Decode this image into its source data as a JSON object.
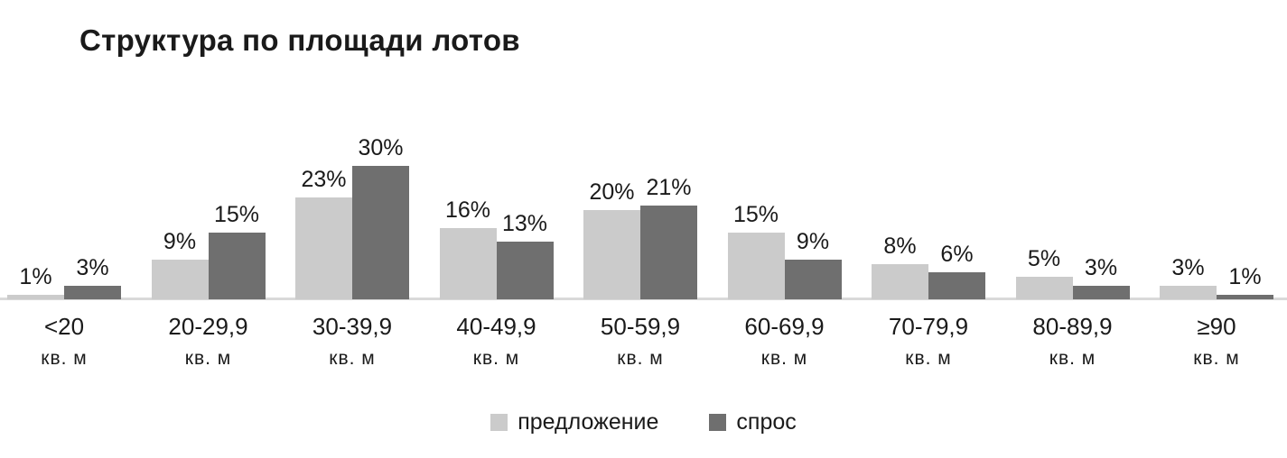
{
  "chart_data": {
    "type": "bar",
    "title": "Структура по площади лотов",
    "categories": [
      "<20",
      "20-29,9",
      "30-39,9",
      "40-49,9",
      "50-59,9",
      "60-69,9",
      "70-79,9",
      "80-89,9",
      "≥90"
    ],
    "category_sublabel": "кв. м",
    "series": [
      {
        "key": "supply",
        "name": "предложение",
        "color": "#cbcbcb",
        "values": [
          1,
          9,
          23,
          16,
          20,
          15,
          8,
          5,
          3
        ]
      },
      {
        "key": "demand",
        "name": "спрос",
        "color": "#6f6f6f",
        "values": [
          3,
          15,
          30,
          13,
          21,
          9,
          6,
          3,
          1
        ]
      }
    ],
    "value_suffix": "%",
    "ylim": [
      0,
      32
    ],
    "grid": false,
    "data_labels": true,
    "legend_position": "bottom"
  },
  "colors": {
    "title": "#1a1a1a",
    "labels": "#1a1a1a",
    "axis_line": "#d9d9d9",
    "background": "#ffffff"
  }
}
